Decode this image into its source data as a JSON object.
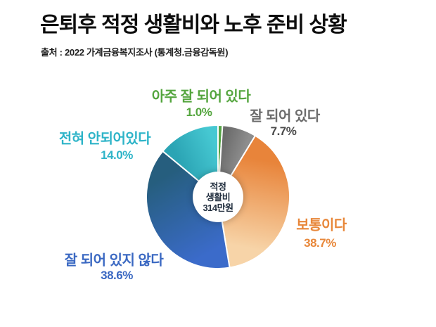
{
  "header": {
    "title": "은퇴후 적정 생활비와 노후 준비 상황",
    "source": "출처 : 2022 가계금융복지조사 (통계청.금융감독원)"
  },
  "chart_data": {
    "type": "pie",
    "title": "은퇴후 적정 생활비와 노후 준비 상황",
    "donut": true,
    "donut_hole_ratio": 0.33,
    "start_angle_deg": 0,
    "direction": "clockwise",
    "center_text": "적정 생활비 314만원",
    "center_lines": [
      "적정",
      "생활비",
      "314만원"
    ],
    "slices": [
      {
        "label": "아주 잘 되어 있다",
        "value": 1.0,
        "pct_text": "1.0%",
        "color_start": "#54a344",
        "color_end": "#54a344",
        "label_color": "#54a53e"
      },
      {
        "label": "잘 되어 있다",
        "value": 7.7,
        "pct_text": "7.7%",
        "color_start": "#6c6c6c",
        "color_end": "#8d8d8d",
        "label_color": "#6c6c6c",
        "pct_color": "#4a4a4a"
      },
      {
        "label": "보통이다",
        "value": 38.7,
        "pct_text": "38.7%",
        "color_start": "#e8843a",
        "color_end": "#f7d4a8",
        "label_color": "#e8873a"
      },
      {
        "label": "잘 되어 있지 않다",
        "value": 38.6,
        "pct_text": "38.6%",
        "color_start": "#3b6bca",
        "color_end": "#265e7e",
        "label_color": "#3a68c2"
      },
      {
        "label": "전혀 안되어있다",
        "value": 14.0,
        "pct_text": "14.0%",
        "color_start": "#2ba4b4",
        "color_end": "#46c8d2",
        "label_color": "#2eb4c8"
      }
    ]
  }
}
